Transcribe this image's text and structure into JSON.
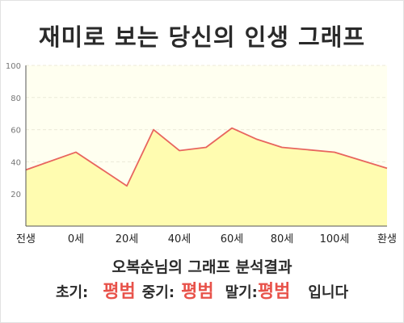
{
  "page_title": "재미로 보는 당신의 인생 그래프",
  "analysis_title": "오복순님의 그래프 분석결과",
  "result": {
    "early_label": "초기:",
    "early_value": "평범",
    "middle_label": "중기:",
    "middle_value": "평범",
    "late_label": "말기:",
    "late_value": "평범",
    "ending": "입니다"
  },
  "colors": {
    "line": "#e8655e",
    "fill": "#fffcb0",
    "plot_background": "#fffff0",
    "highlight_text": "#e8524a",
    "grid": "#ecead8"
  },
  "chart_data": {
    "type": "area",
    "title": "",
    "xlabel": "",
    "ylabel": "",
    "x_tick_labels": [
      "전생",
      "0세",
      "20세",
      "40세",
      "60세",
      "80세",
      "100세",
      "환생"
    ],
    "y_ticks": [
      20,
      40,
      60,
      80,
      100
    ],
    "ylim": [
      0,
      100
    ],
    "grid": true,
    "points": [
      {
        "x": "전생",
        "y": 35
      },
      {
        "x": "0세",
        "y": 46
      },
      {
        "x": "20세",
        "y": 25
      },
      {
        "x": "30세",
        "y": 60
      },
      {
        "x": "40세",
        "y": 47
      },
      {
        "x": "50세",
        "y": 49
      },
      {
        "x": "60세",
        "y": 61
      },
      {
        "x": "70세",
        "y": 54
      },
      {
        "x": "80세",
        "y": 49
      },
      {
        "x": "100세",
        "y": 46
      },
      {
        "x": "환생",
        "y": 36
      }
    ]
  }
}
